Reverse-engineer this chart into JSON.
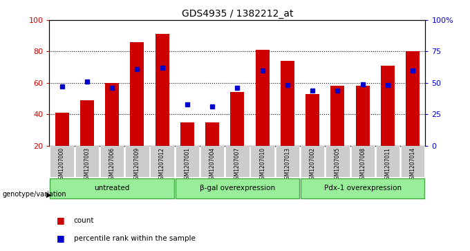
{
  "title": "GDS4935 / 1382212_at",
  "samples": [
    "GSM1207000",
    "GSM1207003",
    "GSM1207006",
    "GSM1207009",
    "GSM1207012",
    "GSM1207001",
    "GSM1207004",
    "GSM1207007",
    "GSM1207010",
    "GSM1207013",
    "GSM1207002",
    "GSM1207005",
    "GSM1207008",
    "GSM1207011",
    "GSM1207014"
  ],
  "counts": [
    41,
    49,
    60,
    86,
    91,
    35,
    35,
    54,
    81,
    74,
    53,
    58,
    58,
    71,
    80
  ],
  "percentiles": [
    47,
    51,
    46,
    61,
    62,
    33,
    31,
    46,
    60,
    48,
    44,
    44,
    49,
    48,
    60
  ],
  "groups": [
    {
      "label": "untreated",
      "start": 0,
      "end": 4
    },
    {
      "label": "β-gal overexpression",
      "start": 5,
      "end": 9
    },
    {
      "label": "Pdx-1 overexpression",
      "start": 10,
      "end": 14
    }
  ],
  "bar_color": "#cc0000",
  "marker_color": "#0000cc",
  "group_fill": "#99ee99",
  "group_border": "#44aa44",
  "ylim_left": [
    20,
    100
  ],
  "ylim_right": [
    0,
    100
  ],
  "yticks_left": [
    20,
    40,
    60,
    80,
    100
  ],
  "ytick_labels_left": [
    "20",
    "40",
    "60",
    "80",
    "100"
  ],
  "yticks_right": [
    0,
    25,
    50,
    75,
    100
  ],
  "ytick_labels_right": [
    "0",
    "25",
    "50",
    "75",
    "100%"
  ],
  "legend_count": "count",
  "legend_pct": "percentile rank within the sample",
  "genotype_label": "genotype/variation"
}
